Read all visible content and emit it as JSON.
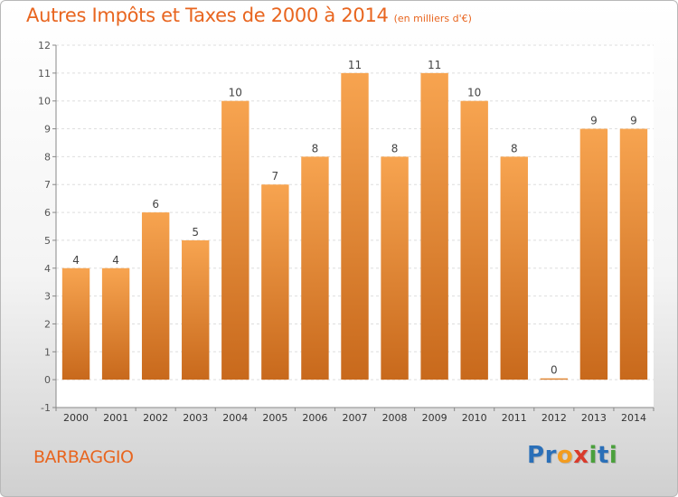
{
  "title": "Autres Impôts et Taxes de 2000 à 2014",
  "unit_note": "(en milliers d'€)",
  "place": "BARBAGGIO",
  "logo": {
    "text": "Proxiti",
    "letters": [
      {
        "ch": "P",
        "color": "#2a6fb8"
      },
      {
        "ch": "r",
        "color": "#2a6fb8"
      },
      {
        "ch": "o",
        "color": "#f39c1f"
      },
      {
        "ch": "x",
        "color": "#d93a2b"
      },
      {
        "ch": "i",
        "color": "#4aa03c"
      },
      {
        "ch": "t",
        "color": "#2a6fb8"
      },
      {
        "ch": "i",
        "color": "#4aa03c"
      }
    ]
  },
  "colors": {
    "accent": "#e8651f",
    "bar_top": "#f7a450",
    "bar_bottom": "#c8691c"
  },
  "chart_data": {
    "type": "bar",
    "categories": [
      "2000",
      "2001",
      "2002",
      "2003",
      "2004",
      "2005",
      "2006",
      "2007",
      "2008",
      "2009",
      "2010",
      "2011",
      "2012",
      "2013",
      "2014"
    ],
    "values": [
      4,
      4,
      6,
      5,
      10,
      7,
      8,
      11,
      8,
      11,
      10,
      8,
      0,
      9,
      9
    ],
    "value_labels": [
      "4",
      "4",
      "6",
      "5",
      "10",
      "7",
      "8",
      "11",
      "8",
      "11",
      "10",
      "8",
      "0",
      "9",
      "9"
    ],
    "ylim": [
      -1,
      12
    ],
    "yticks": [
      -1,
      0,
      1,
      2,
      3,
      4,
      5,
      6,
      7,
      8,
      9,
      10,
      11,
      12
    ],
    "ytick_labels": [
      "-1",
      "0",
      "1",
      "2",
      "3",
      "4",
      "5",
      "6",
      "7",
      "8",
      "9",
      "10",
      "11",
      "12"
    ],
    "grid": true,
    "legend": "none"
  }
}
